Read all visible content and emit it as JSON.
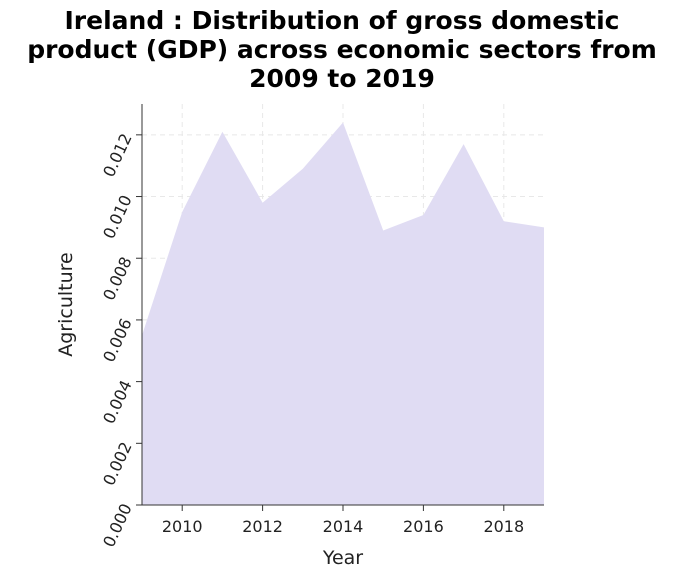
{
  "chart_data": {
    "type": "area",
    "title": "Ireland : Distribution of gross domestic product (GDP) across economic sectors from 2009 to 2019",
    "xlabel": "Year",
    "ylabel": "Agriculture",
    "x": [
      2009,
      2010,
      2011,
      2012,
      2013,
      2014,
      2015,
      2016,
      2017,
      2018,
      2019
    ],
    "values": [
      0.0055,
      0.0095,
      0.0121,
      0.0098,
      0.0109,
      0.0124,
      0.0089,
      0.0094,
      0.0117,
      0.0092,
      0.009
    ],
    "xlim": [
      2009,
      2019
    ],
    "ylim": [
      0,
      0.013
    ],
    "x_ticks": [
      "2010",
      "2012",
      "2014",
      "2016",
      "2018"
    ],
    "x_tick_values": [
      2010,
      2012,
      2014,
      2016,
      2018
    ],
    "y_ticks": [
      "0.000",
      "0.002",
      "0.004",
      "0.006",
      "0.008",
      "0.010",
      "0.012"
    ],
    "y_tick_values": [
      0,
      0.002,
      0.004,
      0.006,
      0.008,
      0.01,
      0.012
    ],
    "grid": true,
    "fill_color": "#e0dcf3",
    "grid_color": "#e8e8e8"
  }
}
